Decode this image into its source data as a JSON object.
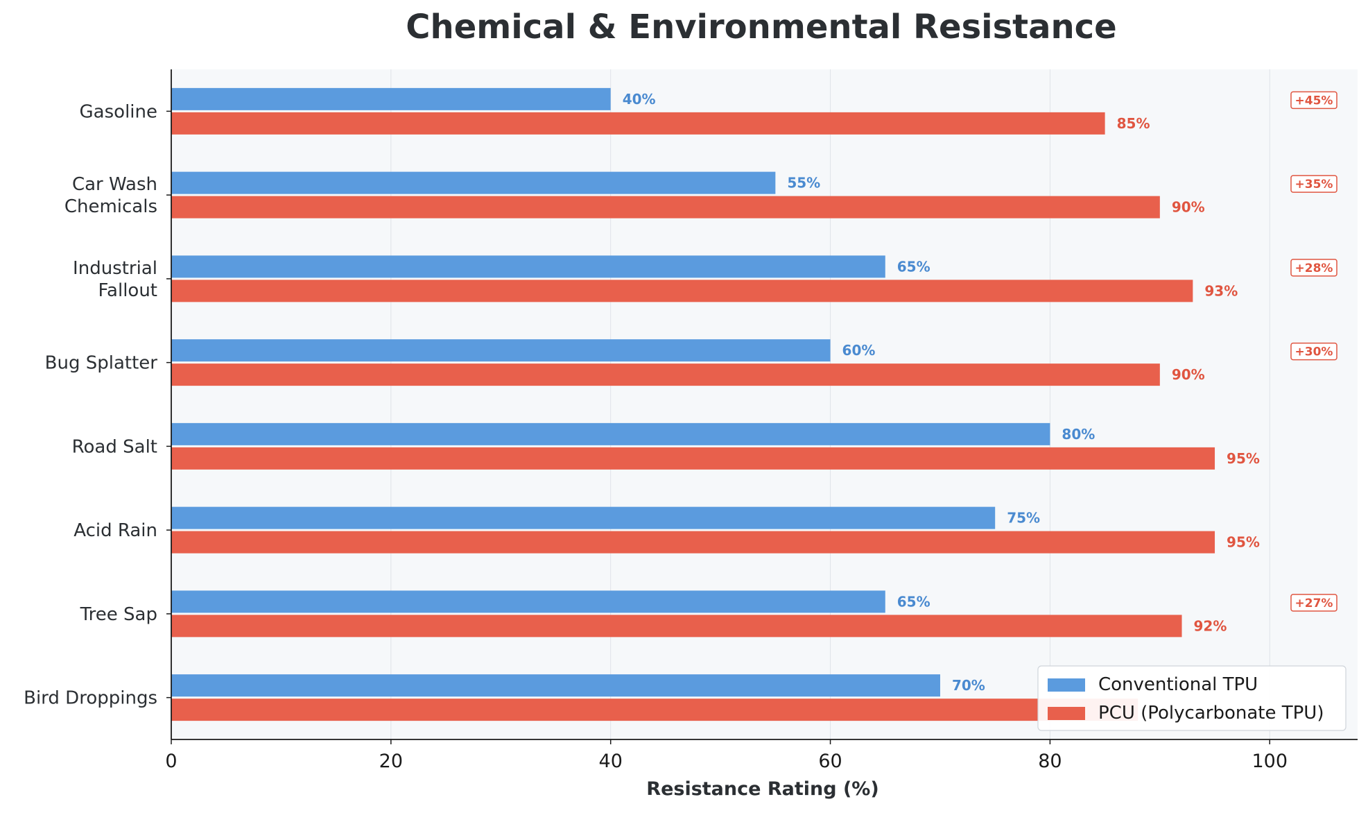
{
  "chart_data": {
    "type": "bar",
    "orientation": "horizontal",
    "title": "Chemical & Environmental Resistance",
    "xlabel": "Resistance Rating (%)",
    "ylabel": "",
    "xlim": [
      0,
      108
    ],
    "xticks": [
      0,
      20,
      40,
      60,
      80,
      100
    ],
    "grid": "x",
    "legend_position": "bottom-right",
    "categories": [
      "Gasoline",
      "Car Wash\nChemicals",
      "Industrial\nFallout",
      "Bug Splatter",
      "Road Salt",
      "Acid Rain",
      "Tree Sap",
      "Bird Droppings"
    ],
    "series": [
      {
        "name": "Conventional TPU",
        "color": "#5b9bde",
        "label_color": "#4a8ad0",
        "values": [
          40,
          55,
          65,
          60,
          80,
          75,
          65,
          70
        ]
      },
      {
        "name": "PCU (Polycarbonate TPU)",
        "color": "#e8604c",
        "label_color": "#e05540",
        "values": [
          85,
          90,
          93,
          90,
          95,
          95,
          92,
          88
        ]
      }
    ],
    "value_labels": {
      "series0": [
        "40%",
        "55%",
        "65%",
        "60%",
        "80%",
        "75%",
        "65%",
        "70%"
      ],
      "series1": [
        "85%",
        "90%",
        "93%",
        "90%",
        "95%",
        "95%",
        "92%",
        ""
      ]
    },
    "improvement_badges": [
      "+45%",
      "+35%",
      "+28%",
      "+30%",
      "",
      "",
      "+27%",
      ""
    ],
    "colors": {
      "plot_background": "#f6f8fa",
      "badge": "#e05540",
      "axis": "#1a1a1a"
    }
  }
}
